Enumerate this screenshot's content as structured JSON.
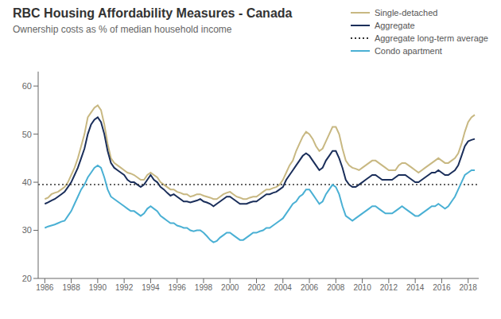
{
  "chart_data": {
    "type": "line",
    "title": "RBC Housing Affordability Measures - Canada",
    "subtitle": "Ownership costs as % of median household income",
    "xlim": [
      1985.5,
      2018.8
    ],
    "xticks": [
      1986,
      1988,
      1990,
      1992,
      1994,
      1996,
      1998,
      2000,
      2002,
      2004,
      2006,
      2008,
      2010,
      2012,
      2014,
      2016,
      2018
    ],
    "ylim": [
      20,
      63
    ],
    "yticks": [
      20,
      30,
      40,
      50,
      60
    ],
    "grid": false,
    "legend": "upper right",
    "x": [
      1986.0,
      1986.25,
      1986.5,
      1986.75,
      1987.0,
      1987.25,
      1987.5,
      1987.75,
      1988.0,
      1988.25,
      1988.5,
      1988.75,
      1989.0,
      1989.25,
      1989.5,
      1989.75,
      1990.0,
      1990.25,
      1990.5,
      1990.75,
      1991.0,
      1991.25,
      1991.5,
      1991.75,
      1992.0,
      1992.25,
      1992.5,
      1992.75,
      1993.0,
      1993.25,
      1993.5,
      1993.75,
      1994.0,
      1994.25,
      1994.5,
      1994.75,
      1995.0,
      1995.25,
      1995.5,
      1995.75,
      1996.0,
      1996.25,
      1996.5,
      1996.75,
      1997.0,
      1997.25,
      1997.5,
      1997.75,
      1998.0,
      1998.25,
      1998.5,
      1998.75,
      1999.0,
      1999.25,
      1999.5,
      1999.75,
      2000.0,
      2000.25,
      2000.5,
      2000.75,
      2001.0,
      2001.25,
      2001.5,
      2001.75,
      2002.0,
      2002.25,
      2002.5,
      2002.75,
      2003.0,
      2003.25,
      2003.5,
      2003.75,
      2004.0,
      2004.25,
      2004.5,
      2004.75,
      2005.0,
      2005.25,
      2005.5,
      2005.75,
      2006.0,
      2006.25,
      2006.5,
      2006.75,
      2007.0,
      2007.25,
      2007.5,
      2007.75,
      2008.0,
      2008.25,
      2008.5,
      2008.75,
      2009.0,
      2009.25,
      2009.5,
      2009.75,
      2010.0,
      2010.25,
      2010.5,
      2010.75,
      2011.0,
      2011.25,
      2011.5,
      2011.75,
      2012.0,
      2012.25,
      2012.5,
      2012.75,
      2013.0,
      2013.25,
      2013.5,
      2013.75,
      2014.0,
      2014.25,
      2014.5,
      2014.75,
      2015.0,
      2015.25,
      2015.5,
      2015.75,
      2016.0,
      2016.25,
      2016.5,
      2016.75,
      2017.0,
      2017.25,
      2017.5,
      2017.75,
      2018.0,
      2018.25,
      2018.5
    ],
    "series": [
      {
        "name": "Single-detached",
        "color": "#c8b882",
        "values": [
          36.5,
          36.8,
          37.5,
          37.8,
          38.0,
          38.5,
          39.0,
          40.0,
          41.5,
          43.0,
          45.0,
          47.5,
          50.0,
          53.5,
          54.5,
          55.5,
          56.0,
          55.0,
          52.0,
          48.0,
          45.0,
          44.0,
          43.5,
          43.0,
          42.5,
          42.0,
          41.8,
          41.5,
          41.0,
          40.5,
          40.5,
          41.5,
          42.0,
          41.5,
          41.0,
          40.0,
          39.5,
          39.0,
          38.5,
          38.5,
          38.0,
          37.8,
          37.5,
          37.5,
          37.0,
          37.2,
          37.5,
          37.5,
          37.2,
          37.0,
          36.8,
          36.5,
          36.5,
          37.0,
          37.5,
          37.8,
          38.0,
          37.5,
          37.0,
          36.8,
          36.5,
          36.5,
          36.8,
          37.0,
          37.0,
          37.5,
          38.0,
          38.5,
          38.5,
          38.8,
          39.0,
          39.5,
          40.5,
          42.0,
          43.5,
          44.5,
          46.5,
          48.0,
          49.5,
          50.5,
          50.0,
          49.0,
          47.5,
          46.5,
          47.0,
          48.5,
          50.0,
          51.5,
          51.5,
          50.0,
          47.0,
          44.5,
          43.5,
          43.0,
          42.8,
          42.5,
          43.0,
          43.5,
          44.0,
          44.5,
          44.5,
          44.0,
          43.5,
          43.0,
          42.5,
          42.5,
          42.5,
          43.5,
          44.0,
          44.0,
          43.5,
          43.0,
          42.5,
          42.0,
          42.5,
          43.0,
          43.5,
          44.0,
          44.5,
          45.0,
          44.5,
          44.0,
          44.0,
          44.5,
          45.0,
          46.0,
          48.0,
          50.5,
          52.5,
          53.5,
          54.0
        ]
      },
      {
        "name": "Aggregate",
        "color": "#1a2e5a",
        "values": [
          35.5,
          35.8,
          36.2,
          36.5,
          37.0,
          37.5,
          38.0,
          39.0,
          40.0,
          41.5,
          43.0,
          45.0,
          47.0,
          50.0,
          52.0,
          53.0,
          53.5,
          52.5,
          50.0,
          46.5,
          44.0,
          43.0,
          42.5,
          42.0,
          41.5,
          40.5,
          40.0,
          40.0,
          39.5,
          39.0,
          39.5,
          40.5,
          41.5,
          40.5,
          40.0,
          39.0,
          38.5,
          37.8,
          37.2,
          37.5,
          37.0,
          36.5,
          36.0,
          36.0,
          35.8,
          36.0,
          36.2,
          36.5,
          36.0,
          35.8,
          35.5,
          35.0,
          35.5,
          36.0,
          36.5,
          37.0,
          37.0,
          36.5,
          36.0,
          35.5,
          35.5,
          35.5,
          35.8,
          36.0,
          36.0,
          36.5,
          37.0,
          37.5,
          37.5,
          37.8,
          38.0,
          38.5,
          39.0,
          40.5,
          41.5,
          42.5,
          43.5,
          44.5,
          45.5,
          46.0,
          45.5,
          44.5,
          43.5,
          42.5,
          43.0,
          44.5,
          45.5,
          46.5,
          46.5,
          45.0,
          43.0,
          40.5,
          39.5,
          39.0,
          39.0,
          39.5,
          40.0,
          40.5,
          41.0,
          41.5,
          41.5,
          41.0,
          40.5,
          40.5,
          40.5,
          40.5,
          41.0,
          41.5,
          41.5,
          41.5,
          41.0,
          40.5,
          40.0,
          40.0,
          40.5,
          41.0,
          41.5,
          42.0,
          42.0,
          42.5,
          42.0,
          41.5,
          41.5,
          42.0,
          42.5,
          43.5,
          45.5,
          47.5,
          48.5,
          48.8,
          49.0
        ]
      },
      {
        "name": "Aggregate long-term average",
        "type": "hline",
        "value": 39.5,
        "color": "#333333",
        "line_style": "dotted"
      },
      {
        "name": "Condo apartment",
        "color": "#4ab0d4",
        "values": [
          30.5,
          30.8,
          31.0,
          31.2,
          31.5,
          31.8,
          32.0,
          33.0,
          34.0,
          35.5,
          37.0,
          38.5,
          39.5,
          41.0,
          42.0,
          43.0,
          43.5,
          43.0,
          41.0,
          38.5,
          37.0,
          36.5,
          36.0,
          35.5,
          35.0,
          34.5,
          34.0,
          34.0,
          33.5,
          33.0,
          33.5,
          34.5,
          35.0,
          34.5,
          34.0,
          33.0,
          32.5,
          32.0,
          31.5,
          31.5,
          31.0,
          30.8,
          30.5,
          30.5,
          30.0,
          29.8,
          30.0,
          30.0,
          29.5,
          28.8,
          28.0,
          27.5,
          27.8,
          28.5,
          29.0,
          29.5,
          29.5,
          29.0,
          28.5,
          28.0,
          28.0,
          28.5,
          29.0,
          29.5,
          29.5,
          29.8,
          30.0,
          30.5,
          30.5,
          31.0,
          31.5,
          32.0,
          32.5,
          33.5,
          34.5,
          35.5,
          36.0,
          37.0,
          37.5,
          38.5,
          38.5,
          37.5,
          36.5,
          35.5,
          36.0,
          37.5,
          38.5,
          39.5,
          39.0,
          37.5,
          35.0,
          33.0,
          32.5,
          32.0,
          32.5,
          33.0,
          33.5,
          34.0,
          34.5,
          35.0,
          35.0,
          34.5,
          34.0,
          33.5,
          33.5,
          33.5,
          34.0,
          34.5,
          35.0,
          34.5,
          34.0,
          33.5,
          33.0,
          33.0,
          33.5,
          34.0,
          34.5,
          35.0,
          35.0,
          35.5,
          35.0,
          34.5,
          35.0,
          36.0,
          37.0,
          38.5,
          40.0,
          41.5,
          42.0,
          42.5,
          42.5
        ]
      }
    ]
  }
}
